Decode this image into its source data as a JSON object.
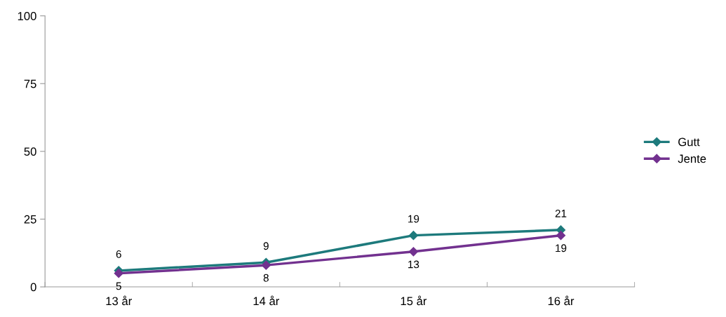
{
  "chart_data": {
    "type": "line",
    "categories": [
      "13 år",
      "14 år",
      "15 år",
      "16 år"
    ],
    "series": [
      {
        "name": "Gutt",
        "color": "#1d7a7c",
        "values": [
          6,
          9,
          19,
          21
        ]
      },
      {
        "name": "Jente",
        "color": "#72318f",
        "values": [
          5,
          8,
          13,
          19
        ]
      }
    ],
    "ylim": [
      0,
      100
    ],
    "yticks": [
      0,
      25,
      50,
      75,
      100
    ],
    "marker": "diamond",
    "line_style": "solid",
    "data_labels": true,
    "legend": "right",
    "grid": false
  }
}
